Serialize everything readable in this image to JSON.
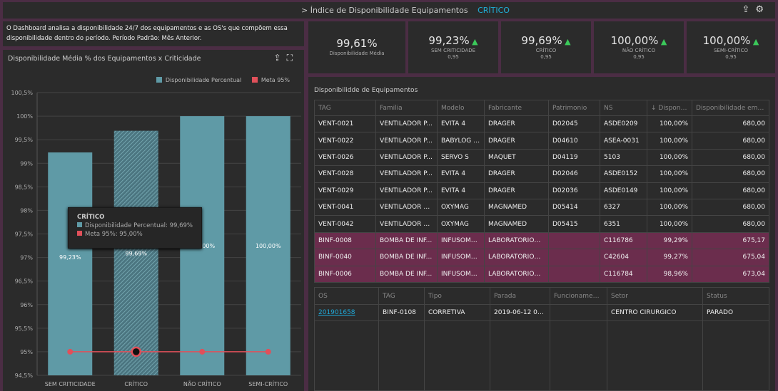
{
  "header": {
    "breadcrumb_prefix": ">",
    "title": "Índice de Disponibilidade Equipamentos",
    "filter": "CRÍTICO"
  },
  "description": "O Dashboard analisa a disponibilidade 24/7 dos equipamentos e as OS's que compõem essa disponibilidade dentro do período. Período Padrão: Mês Anterior.",
  "kpis": [
    {
      "value": "99,61%",
      "label": "Disponibilidade Média",
      "sub": "",
      "trend": ""
    },
    {
      "value": "99,23%",
      "label": "SEM CRITICIDADE",
      "sub": "0,95",
      "trend": "up"
    },
    {
      "value": "99,69%",
      "label": "CRÍTICO",
      "sub": "0,95",
      "trend": "up"
    },
    {
      "value": "100,00%",
      "label": "NÃO CRÍTICO",
      "sub": "0,95",
      "trend": "up"
    },
    {
      "value": "100,00%",
      "label": "SEMI-CRÍTICO",
      "sub": "0,95",
      "trend": "up"
    }
  ],
  "chart_data": {
    "type": "bar",
    "title": "Disponibilidade Média % dos Equipamentos x Criticidade",
    "categories": [
      "SEM CRITICIDADE",
      "CRÍTICO",
      "NÃO CRÍTICO",
      "SEMI-CRÍTICO"
    ],
    "series": [
      {
        "name": "Disponibilidade Percentual",
        "type": "bar",
        "values": [
          99.23,
          99.69,
          100.0,
          100.0
        ],
        "labels": [
          "99,23%",
          "99,69%",
          "100,00%",
          "100,00%"
        ],
        "color": "#5f9aa6"
      },
      {
        "name": "Meta 95%",
        "type": "line",
        "values": [
          95,
          95,
          95,
          95
        ],
        "color": "#e0505a"
      }
    ],
    "yticks": [
      "100,5%",
      "100%",
      "99,5%",
      "99%",
      "98,5%",
      "98%",
      "97,5%",
      "97%",
      "96,5%",
      "96%",
      "95,5%",
      "95%",
      "94,5%"
    ],
    "ylim": [
      94.5,
      100.5
    ],
    "grid": true,
    "legend": "top-right",
    "highlighted": "CRÍTICO",
    "tooltip": {
      "title": "CRÍTICO",
      "line1": "Disponibilidade Percentual: 99,69%",
      "line2": "Meta 95%: 95,00%"
    }
  },
  "equipment_table": {
    "title": "Disponibilidde de Equipamentos",
    "columns": [
      "TAG",
      "Familia",
      "Modelo",
      "Fabricante",
      "Patrimonio",
      "NS",
      "↓ Disponi...",
      "Disponibilidade em ..."
    ],
    "rows": [
      [
        "VENT-0021",
        "VENTILADOR P...",
        "EVITA 4",
        "DRAGER",
        "D02045",
        "ASDE0209",
        "100,00%",
        "680,00"
      ],
      [
        "VENT-0022",
        "VENTILADOR P...",
        "BABYLOG 8...",
        "DRAGER",
        "D04610",
        "ASEA-0031",
        "100,00%",
        "680,00"
      ],
      [
        "VENT-0026",
        "VENTILADOR P...",
        "SERVO S",
        "MAQUET",
        "D04119",
        "5103",
        "100,00%",
        "680,00"
      ],
      [
        "VENT-0028",
        "VENTILADOR P...",
        "EVITA 4",
        "DRAGER",
        "D02046",
        "ASDE0152",
        "100,00%",
        "680,00"
      ],
      [
        "VENT-0029",
        "VENTILADOR P...",
        "EVITA 4",
        "DRAGER",
        "D02036",
        "ASDE0149",
        "100,00%",
        "680,00"
      ],
      [
        "VENT-0041",
        "VENTILADOR D...",
        "OXYMAG",
        "MAGNAMED",
        "D05414",
        "6327",
        "100,00%",
        "680,00"
      ],
      [
        "VENT-0042",
        "VENTILADOR D...",
        "OXYMAG",
        "MAGNAMED",
        "D05415",
        "6351",
        "100,00%",
        "680,00"
      ],
      [
        "BINF-0008",
        "BOMBA DE INF...",
        "INFUSOMA...",
        "LABORATORIOS ...",
        "",
        "C116786",
        "99,29%",
        "675,17"
      ],
      [
        "BINF-0040",
        "BOMBA DE INF...",
        "INFUSOMA...",
        "LABORATORIOS ...",
        "",
        "C42604",
        "99,27%",
        "675,04"
      ],
      [
        "BINF-0006",
        "BOMBA DE INF...",
        "INFUSOMA...",
        "LABORATORIOS ...",
        "",
        "C116784",
        "98,96%",
        "673,04"
      ]
    ],
    "highlight_color": "#6b2d4d"
  },
  "os_table": {
    "columns": [
      "OS",
      "TAG",
      "Tipo",
      "Parada",
      "Funcionamento",
      "Setor",
      "Status"
    ],
    "rows": [
      [
        "201901658",
        "BINF-0108",
        "CORRETIVA",
        "2019-06-12 09:34",
        "",
        "CENTRO CIRURGICO",
        "PARADO"
      ]
    ]
  }
}
